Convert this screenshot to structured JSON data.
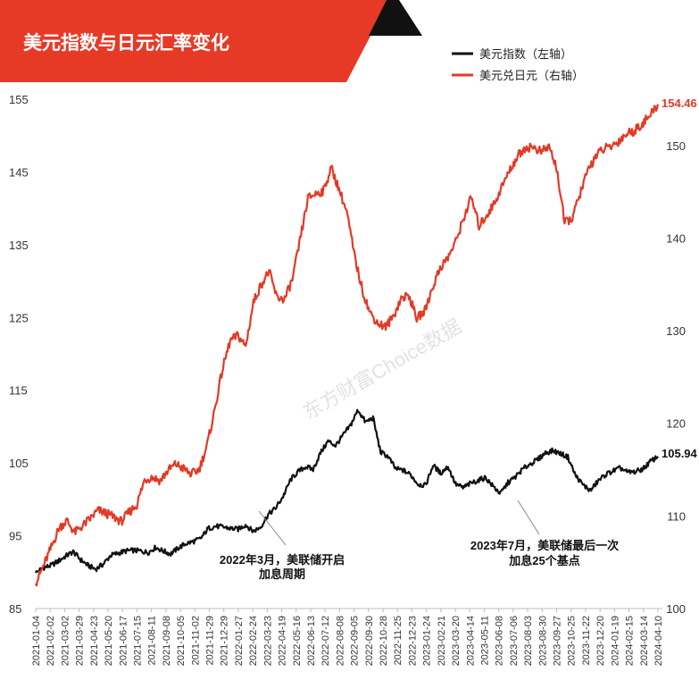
{
  "title": "美元指数与日元汇率变化",
  "watermark": "东方财富Choice数据",
  "colors": {
    "usd": "#111111",
    "jpy": "#e23a26",
    "banner": "#e63a27",
    "banner_dark": "#111111"
  },
  "chart_data": {
    "type": "line",
    "legend_position": "top-right",
    "grid": false,
    "x_tick_labels": [
      "2021-01-04",
      "2021-02-02",
      "2021-03-02",
      "2021-03-29",
      "2021-04-23",
      "2021-05-20",
      "2021-06-17",
      "2021-07-15",
      "2021-08-11",
      "2021-09-08",
      "2021-10-05",
      "2021-11-02",
      "2021-11-29",
      "2021-12-29",
      "2022-01-27",
      "2022-02-24",
      "2022-03-23",
      "2022-04-19",
      "2022-05-16",
      "2022-06-13",
      "2022-07-12",
      "2022-08-08",
      "2022-09-05",
      "2022-09-30",
      "2022-10-28",
      "2022-11-25",
      "2022-12-23",
      "2023-01-24",
      "2023-02-21",
      "2023-03-20",
      "2023-04-14",
      "2023-05-11",
      "2023-06-08",
      "2023-07-06",
      "2023-08-03",
      "2023-08-30",
      "2023-09-27",
      "2023-10-25",
      "2023-11-22",
      "2023-12-20",
      "2024-01-19",
      "2024-02-15",
      "2024-03-14",
      "2024-04-10"
    ],
    "y_left": {
      "ticks": [
        "85",
        "95",
        "105",
        "115",
        "125",
        "135",
        "145",
        "155"
      ],
      "range": [
        85,
        155
      ]
    },
    "y_right": {
      "ticks": [
        "100",
        "110",
        "120",
        "130",
        "140",
        "150"
      ],
      "range": [
        100,
        155
      ]
    },
    "series": [
      {
        "name": "美元指数（左轴）",
        "axis": "left",
        "color": "#111111",
        "end_label": "105.94",
        "values": [
          89.9,
          90.6,
          90.9,
          91.5,
          92.2,
          92.8,
          91.7,
          90.9,
          90.4,
          91.1,
          92.3,
          92.6,
          92.9,
          93.0,
          92.9,
          92.7,
          93.4,
          92.9,
          92.5,
          93.3,
          93.9,
          94.2,
          94.6,
          96.0,
          96.3,
          96.2,
          96.0,
          95.9,
          96.5,
          95.6,
          96.2,
          97.9,
          98.8,
          100.4,
          102.7,
          103.8,
          104.5,
          104.1,
          106.4,
          108.0,
          107.4,
          108.8,
          110.2,
          112.3,
          110.6,
          111.2,
          106.5,
          105.9,
          104.2,
          104.0,
          103.4,
          102.1,
          101.9,
          104.7,
          103.6,
          104.5,
          102.1,
          101.6,
          102.2,
          102.6,
          103.0,
          101.8,
          100.8,
          102.3,
          103.1,
          104.2,
          104.9,
          105.5,
          106.4,
          106.7,
          106.3,
          105.8,
          103.3,
          102.0,
          101.2,
          102.5,
          103.4,
          103.9,
          104.3,
          103.7,
          103.8,
          104.2,
          105.2,
          105.9
        ]
      },
      {
        "name": "美元兑日元（右轴）",
        "axis": "right",
        "color": "#e23a26",
        "end_label": "154.46",
        "values": [
          102.7,
          104.6,
          106.6,
          108.7,
          109.5,
          108.2,
          108.9,
          109.7,
          110.6,
          110.3,
          109.9,
          109.4,
          110.4,
          111.2,
          113.9,
          114.2,
          113.8,
          114.9,
          115.6,
          115.1,
          114.5,
          115.0,
          117.5,
          121.4,
          125.8,
          128.9,
          129.5,
          128.3,
          133.1,
          135.0,
          136.4,
          133.6,
          133.4,
          135.5,
          139.8,
          144.3,
          144.8,
          145.1,
          147.6,
          145.3,
          142.8,
          138.0,
          134.4,
          131.9,
          130.8,
          130.4,
          131.6,
          133.5,
          133.8,
          131.3,
          132.1,
          134.6,
          136.8,
          137.9,
          139.6,
          142.1,
          144.4,
          141.3,
          142.5,
          143.8,
          145.7,
          147.4,
          148.9,
          149.8,
          149.8,
          149.3,
          149.9,
          147.5,
          141.6,
          142.2,
          144.8,
          147.3,
          148.9,
          149.6,
          149.9,
          150.5,
          151.3,
          151.6,
          152.4,
          153.2,
          154.46
        ]
      }
    ],
    "annotations": [
      {
        "lines": [
          "2022年3月，美联储开启",
          "加息周期"
        ]
      },
      {
        "lines": [
          "2023年7月，美联储最后一次",
          "加息25个基点"
        ]
      }
    ]
  }
}
